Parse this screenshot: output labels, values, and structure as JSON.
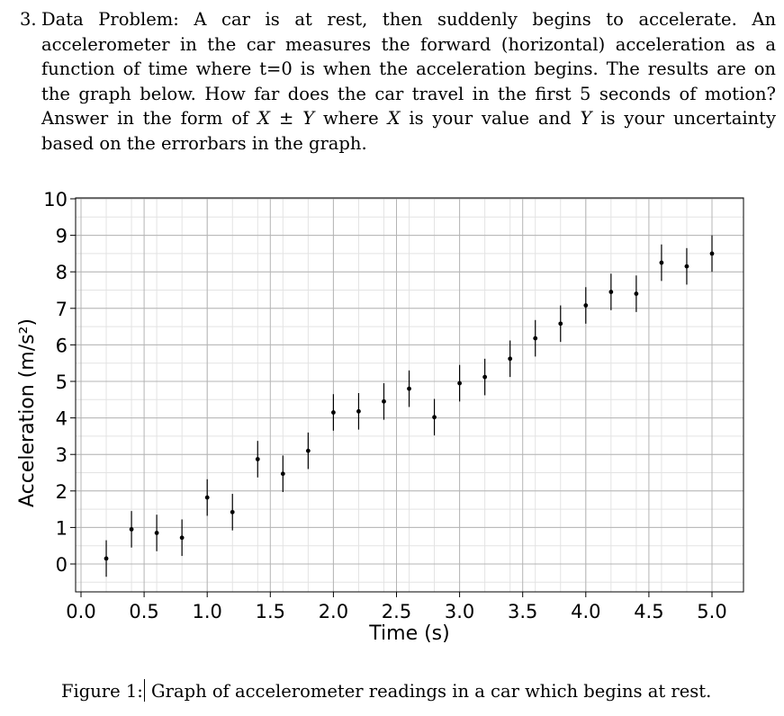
{
  "problem": {
    "number": "3.",
    "text_before_x": "Data Problem: A car is at rest, then suddenly begins to accelerate. An accelerometer in the car measures the forward (horizontal) acceleration as a function of time where t=0 is when the acceleration begins. The results are on the graph below. How far does the car travel in the first 5 seconds of motion? Answer in the form of ",
    "var_x": "X",
    "plusminus": " ± ",
    "var_y": "Y",
    "text_where": " where ",
    "text_is_value": " is your value and ",
    "text_end": " is your uncertainty based on the errorbars in the graph."
  },
  "caption": {
    "label": "Figure 1:",
    "text": " Graph of accelerometer readings in a car which begins at rest."
  },
  "chart_data": {
    "type": "scatter",
    "xlabel": "Time (s)",
    "ylabel": "Acceleration (m/s²)",
    "xlim": [
      0.0,
      5.0
    ],
    "ylim": [
      -0.7,
      10.1
    ],
    "xticks": [
      "0.0",
      "0.5",
      "1.0",
      "1.5",
      "2.0",
      "2.5",
      "3.0",
      "3.5",
      "4.0",
      "4.5",
      "5.0"
    ],
    "yticks": [
      "0",
      "1",
      "2",
      "3",
      "4",
      "5",
      "6",
      "7",
      "8",
      "9",
      "10"
    ],
    "grid": true,
    "errorbar": 0.5,
    "points": [
      {
        "x": 0.2,
        "y": 0.15
      },
      {
        "x": 0.4,
        "y": 0.95
      },
      {
        "x": 0.6,
        "y": 0.85
      },
      {
        "x": 0.8,
        "y": 0.72
      },
      {
        "x": 1.0,
        "y": 1.82
      },
      {
        "x": 1.2,
        "y": 1.42
      },
      {
        "x": 1.4,
        "y": 2.87
      },
      {
        "x": 1.6,
        "y": 2.47
      },
      {
        "x": 1.8,
        "y": 3.1
      },
      {
        "x": 2.0,
        "y": 4.15
      },
      {
        "x": 2.2,
        "y": 4.18
      },
      {
        "x": 2.4,
        "y": 4.45
      },
      {
        "x": 2.6,
        "y": 4.8
      },
      {
        "x": 2.8,
        "y": 4.02
      },
      {
        "x": 3.0,
        "y": 4.95
      },
      {
        "x": 3.2,
        "y": 5.12
      },
      {
        "x": 3.4,
        "y": 5.62
      },
      {
        "x": 3.6,
        "y": 6.18
      },
      {
        "x": 3.8,
        "y": 6.58
      },
      {
        "x": 4.0,
        "y": 7.08
      },
      {
        "x": 4.2,
        "y": 7.45
      },
      {
        "x": 4.4,
        "y": 7.4
      },
      {
        "x": 4.6,
        "y": 8.25
      },
      {
        "x": 4.8,
        "y": 8.15
      },
      {
        "x": 5.0,
        "y": 8.5
      }
    ]
  }
}
